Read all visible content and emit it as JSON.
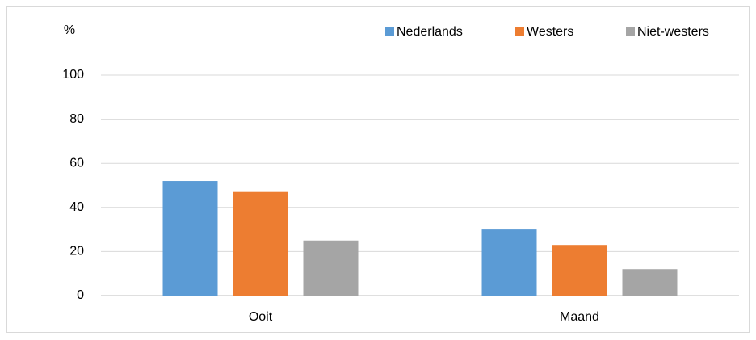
{
  "chart_data": {
    "type": "bar",
    "y_label": "%",
    "categories": [
      "Ooit",
      "Maand"
    ],
    "series": [
      {
        "name": "Nederlands",
        "color": "#5b9bd5",
        "values": [
          52,
          30
        ]
      },
      {
        "name": "Westers",
        "color": "#ed7d31",
        "values": [
          47,
          23
        ]
      },
      {
        "name": "Niet-westers",
        "color": "#a5a5a5",
        "values": [
          25,
          12
        ]
      }
    ],
    "ylim": [
      0,
      100
    ],
    "yticks": [
      0,
      20,
      40,
      60,
      80,
      100
    ],
    "grid": true,
    "legend": "top-right"
  }
}
